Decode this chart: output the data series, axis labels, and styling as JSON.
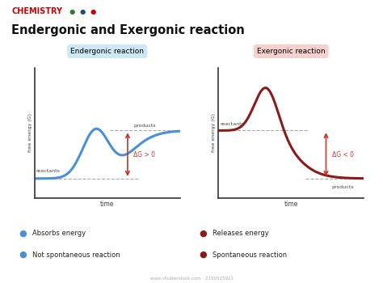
{
  "title": "Endergonic and Exergonic reaction",
  "chemistry_label": "CHEMISTRY",
  "chemistry_color": "#cc0000",
  "dots": [
    "#2e7d32",
    "#1a5276",
    "#cc0000"
  ],
  "background_color": "#ffffff",
  "left_box_label": "Endergonic reaction",
  "right_box_label": "Exergonic reaction",
  "left_box_color": "#cde8f5",
  "right_box_color": "#f5d0cd",
  "left_curve_color": "#4a90d9",
  "right_curve_color": "#8b1a1a",
  "dG_color": "#c0392b",
  "arrow_color": "#c0392b",
  "dashed_color": "#aaaaaa",
  "legend_items_left": [
    "Absorbs energy",
    "Not spontaneous reaction"
  ],
  "legend_items_right": [
    "Releases energy",
    "Spontaneous reaction"
  ],
  "xlabel": "time",
  "ylabel": "free energy (G)",
  "shutterstock_text": "www.shutterstock.com · 2190525921"
}
